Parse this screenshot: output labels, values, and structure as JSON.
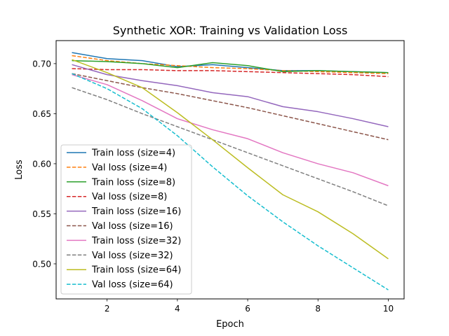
{
  "chart_data": {
    "type": "line",
    "title": "Synthetic XOR: Training vs Validation Loss",
    "xlabel": "Epoch",
    "ylabel": "Loss",
    "xlim": [
      0.55,
      10.45
    ],
    "ylim": [
      0.465,
      0.723
    ],
    "xticks": [
      2,
      4,
      6,
      8,
      10
    ],
    "yticks": [
      0.5,
      0.55,
      0.6,
      0.65,
      0.7
    ],
    "ytick_labels": [
      "0.50",
      "0.55",
      "0.60",
      "0.65",
      "0.70"
    ],
    "legend_position": "lower-left",
    "grid": false,
    "x": [
      1,
      2,
      3,
      4,
      5,
      6,
      7,
      8,
      9,
      10
    ],
    "series": [
      {
        "name": "Train loss (size=4)",
        "color": "#1f77b4",
        "dash": "solid",
        "values": [
          0.711,
          0.705,
          0.703,
          0.697,
          0.699,
          0.696,
          0.693,
          0.693,
          0.692,
          0.691
        ]
      },
      {
        "name": "Val loss (size=4)",
        "color": "#ff7f0e",
        "dash": "dashed",
        "values": [
          0.708,
          0.703,
          0.7,
          0.698,
          0.696,
          0.695,
          0.693,
          0.692,
          0.691,
          0.69
        ]
      },
      {
        "name": "Train loss (size=8)",
        "color": "#2ca02c",
        "dash": "solid",
        "values": [
          0.703,
          0.702,
          0.7,
          0.696,
          0.701,
          0.698,
          0.692,
          0.693,
          0.692,
          0.691
        ]
      },
      {
        "name": "Val loss (size=8)",
        "color": "#d62728",
        "dash": "dashed",
        "values": [
          0.695,
          0.694,
          0.694,
          0.693,
          0.693,
          0.692,
          0.691,
          0.69,
          0.689,
          0.687
        ]
      },
      {
        "name": "Train loss (size=16)",
        "color": "#9467bd",
        "dash": "solid",
        "values": [
          0.699,
          0.689,
          0.683,
          0.678,
          0.671,
          0.667,
          0.657,
          0.652,
          0.645,
          0.637
        ]
      },
      {
        "name": "Val loss (size=16)",
        "color": "#8c564b",
        "dash": "dashed",
        "values": [
          0.69,
          0.683,
          0.676,
          0.67,
          0.663,
          0.656,
          0.648,
          0.64,
          0.632,
          0.624
        ]
      },
      {
        "name": "Train loss (size=32)",
        "color": "#e377c2",
        "dash": "solid",
        "values": [
          0.689,
          0.679,
          0.663,
          0.645,
          0.634,
          0.625,
          0.611,
          0.6,
          0.591,
          0.578
        ]
      },
      {
        "name": "Val loss (size=32)",
        "color": "#7f7f7f",
        "dash": "dashed",
        "values": [
          0.676,
          0.664,
          0.65,
          0.637,
          0.624,
          0.611,
          0.598,
          0.585,
          0.572,
          0.558
        ]
      },
      {
        "name": "Train loss (size=64)",
        "color": "#bcbd22",
        "dash": "solid",
        "values": [
          0.704,
          0.691,
          0.676,
          0.651,
          0.624,
          0.596,
          0.569,
          0.552,
          0.53,
          0.505
        ]
      },
      {
        "name": "Val loss (size=64)",
        "color": "#17becf",
        "dash": "dashed",
        "values": [
          0.69,
          0.675,
          0.655,
          0.628,
          0.597,
          0.568,
          0.542,
          0.518,
          0.496,
          0.474
        ]
      }
    ]
  }
}
